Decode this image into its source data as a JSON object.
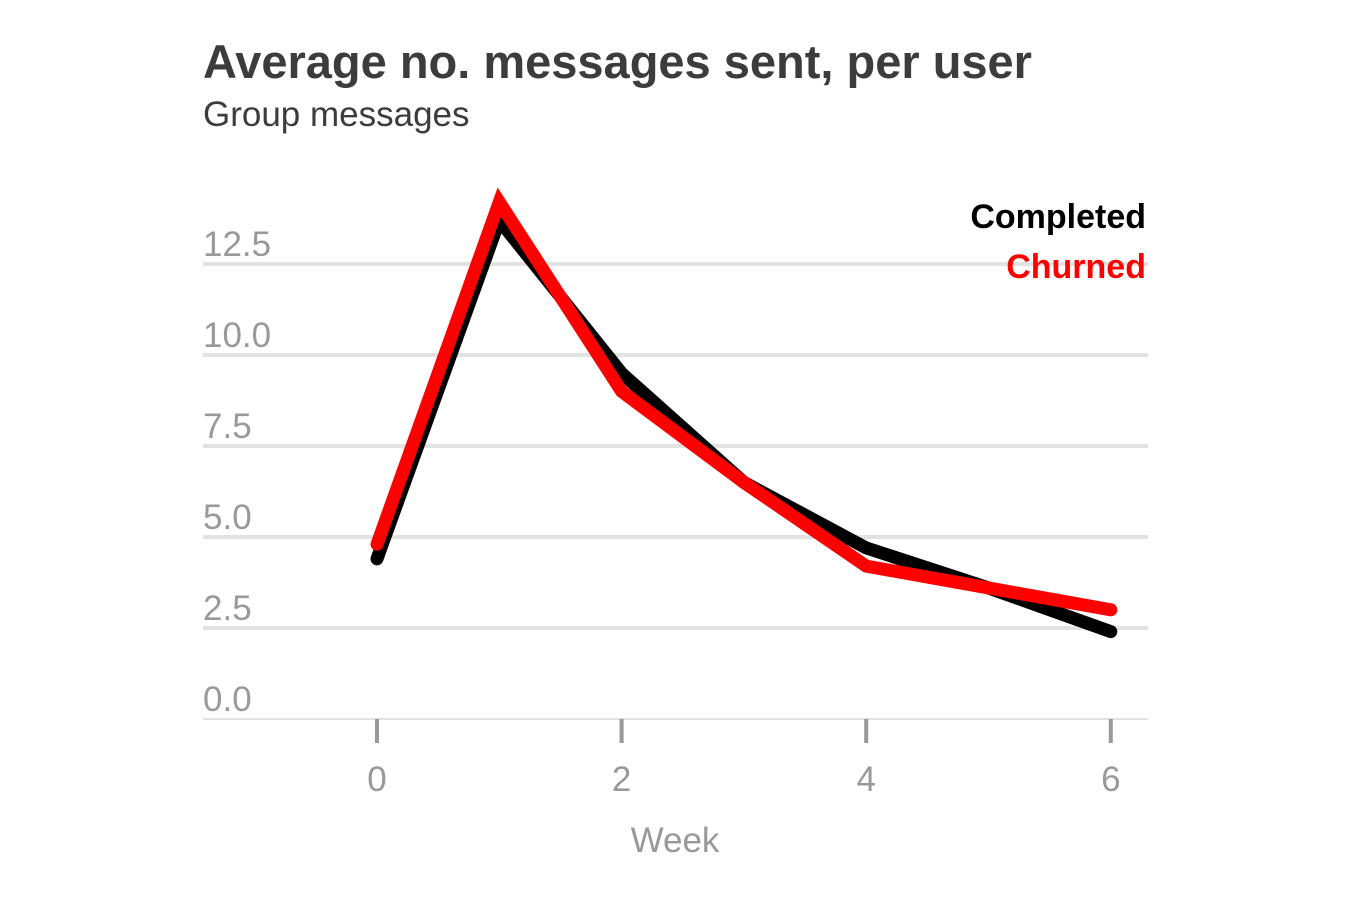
{
  "chart_data": {
    "type": "line",
    "title": "Average no. messages sent, per user",
    "subtitle": "Group messages",
    "xlabel": "Week",
    "ylabel": "",
    "xlim": [
      -1.4,
      6.3
    ],
    "ylim": [
      0,
      15
    ],
    "x_ticks": [
      0,
      2,
      4,
      6
    ],
    "x_tick_labels": [
      "0",
      "2",
      "4",
      "6"
    ],
    "y_ticks": [
      0,
      2.5,
      5,
      7.5,
      10,
      12.5
    ],
    "y_tick_labels": [
      "0.0",
      "2.5",
      "5.0",
      "7.5",
      "10.0",
      "12.5"
    ],
    "grid": true,
    "legend_position": "top-right",
    "x": [
      0,
      1,
      2,
      3,
      4,
      5,
      6
    ],
    "series": [
      {
        "name": "Completed",
        "color": "#000000",
        "values": [
          4.4,
          13.7,
          9.5,
          6.5,
          4.7,
          3.6,
          2.4
        ]
      },
      {
        "name": "Churned",
        "color": "#ff0000",
        "values": [
          4.8,
          14.2,
          9.0,
          6.5,
          4.2,
          3.6,
          3.0
        ]
      }
    ]
  }
}
